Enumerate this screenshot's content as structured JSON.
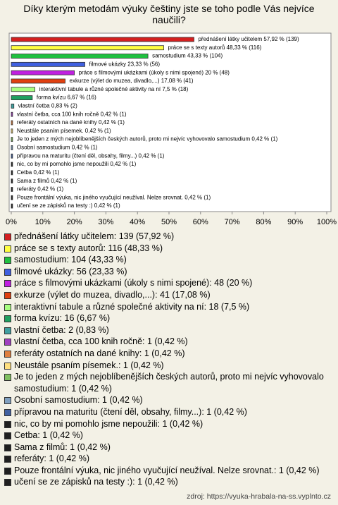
{
  "chart_data": {
    "type": "hbar",
    "title": "Díky kterým metodám výuky češtiny jste se toho podle Vás nejvíce naučili?",
    "categories": [
      "přednášení látky učitelem",
      "práce se s texty autorů",
      "samostudium",
      "filmové ukázky",
      "práce s filmovými ukázkami (úkoly s nimi spojené)",
      "exkurze (výlet do muzea, divadlo,...)",
      "interaktivní tabule a různé společné aktivity na ní",
      "forma kvízu",
      "vlastní četba",
      "vlastní četba, cca 100 knih ročně",
      "referáty ostatních na dané knihy",
      "Neustále psaním písemek.",
      "Je to jeden z mých nejoblíbenějších českých autorů, proto mi nejvíc vyhovovalo samostudium",
      "Osobní samostudium",
      "přípravou na maturitu (čtení děl, obsahy, filmy...)",
      "nic, co by mi pomohlo jsme nepoužili",
      "Cetba",
      "Sama z filmů",
      "referáty",
      "Pouze frontální výuka, nic jiného vyučující neužíval. Nelze srovnat.",
      "učení se ze zápisků na testy :)"
    ],
    "values": [
      57.92,
      48.33,
      43.33,
      23.33,
      20,
      17.08,
      7.5,
      6.67,
      0.83,
      0.42,
      0.42,
      0.42,
      0.42,
      0.42,
      0.42,
      0.42,
      0.42,
      0.42,
      0.42,
      0.42,
      0.42
    ],
    "value_labels": [
      "přednášení látky učitelem 57,92 % (139)",
      "práce se s texty autorů 48,33 % (116)",
      "samostudium 43,33 % (104)",
      "filmové ukázky 23,33 % (56)",
      "práce s filmovými ukázkami (úkoly s nimi spojené) 20 % (48)",
      "exkurze (výlet do muzea, divadlo,...) 17,08 % (41)",
      "interaktivní tabule a různé společné aktivity na ní 7,5 % (18)",
      "forma kvízu 6,67 % (16)",
      "vlastní četba 0,83 % (2)",
      "vlastní četba, cca 100 knih ročně 0,42 % (1)",
      "referáty ostatních na dané knihy 0,42 % (1)",
      "Neustále psaním písemek. 0,42 % (1)",
      "Je to jeden z mých nejoblíbenějších českých autorů, proto mi nejvíc vyhovovalo samostudium 0,42 % (1)",
      "Osobní samostudium 0,42 % (1)",
      "přípravou na maturitu (čtení děl, obsahy, filmy...) 0,42 % (1)",
      "nic, co by mi pomohlo jsme nepoužili 0,42 % (1)",
      "Cetba 0,42 % (1)",
      "Sama z filmů 0,42 % (1)",
      "referáty 0,42 % (1)",
      "Pouze frontální výuka, nic jiného vyučující neužíval. Nelze srovnat. 0,42 % (1)",
      "učení se ze zápisků na testy :) 0,42 % (1)"
    ],
    "legend_labels": [
      "přednášení látky učitelem: 139 (57,92 %)",
      "práce se s texty autorů: 116 (48,33 %)",
      "samostudium: 104 (43,33 %)",
      "filmové ukázky: 56 (23,33 %)",
      "práce s filmovými ukázkami (úkoly s nimi spojené): 48 (20 %)",
      "exkurze (výlet do muzea, divadlo,...): 41 (17,08 %)",
      "interaktivní tabule a různé společné aktivity na ní: 18 (7,5 %)",
      "forma kvízu: 16 (6,67 %)",
      "vlastní četba: 2 (0,83 %)",
      "vlastní četba, cca 100 knih ročně: 1 (0,42 %)",
      "referáty ostatních na dané knihy: 1 (0,42 %)",
      "Neustále psaním písemek.: 1 (0,42 %)",
      "Je to jeden z mých nejoblíbenějších českých autorů, proto mi nejvíc vyhovovalo samostudium: 1 (0,42 %)",
      "Osobní samostudium: 1 (0,42 %)",
      "přípravou na maturitu (čtení děl, obsahy, filmy...): 1 (0,42 %)",
      "nic, co by mi pomohlo jsme nepoužili: 1 (0,42 %)",
      "Cetba: 1 (0,42 %)",
      "Sama z filmů: 1 (0,42 %)",
      "referáty: 1 (0,42 %)",
      "Pouze frontální výuka, nic jiného vyučující neužíval. Nelze srovnat.: 1 (0,42 %)",
      "učení se ze zápisků na testy :): 1 (0,42 %)"
    ],
    "colors": [
      "#d42020",
      "#ffff40",
      "#20c040",
      "#4060e0",
      "#c020e0",
      "#e04010",
      "#a8ff80",
      "#20a060",
      "#40a0a0",
      "#a040c0",
      "#e08040",
      "#ffe080",
      "#80c060",
      "#80a0c0",
      "#4060a0",
      "#202020",
      "#202020",
      "#202020",
      "#202020",
      "#202020",
      "#202020"
    ],
    "xlim": [
      0,
      100
    ],
    "xticks": [
      {
        "value": 0,
        "label": "0%"
      },
      {
        "value": 10,
        "label": "10%"
      },
      {
        "value": 20,
        "label": "20%"
      },
      {
        "value": 30,
        "label": "30%"
      },
      {
        "value": 40,
        "label": "40%"
      },
      {
        "value": 50,
        "label": "50%"
      },
      {
        "value": 60,
        "label": "60%"
      },
      {
        "value": 70,
        "label": "70%"
      },
      {
        "value": 80,
        "label": "80%"
      },
      {
        "value": 90,
        "label": "90%"
      },
      {
        "value": 100,
        "label": "100%"
      }
    ],
    "source": "zdroj: https://vyuka-hrabala-na-ss.vyplnto.cz"
  }
}
